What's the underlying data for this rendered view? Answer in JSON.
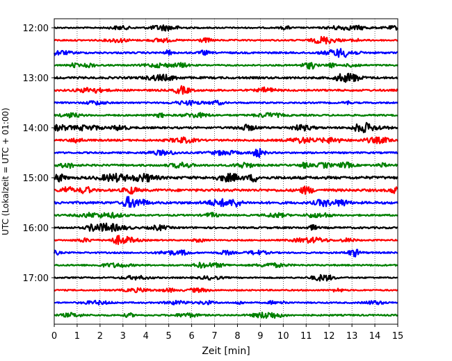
{
  "chart_data": {
    "type": "line",
    "title": "",
    "xlabel": "Zeit  [min]",
    "ylabel": "UTC (Lokalzeit = UTC + 01:00)",
    "xlim": [
      0,
      15
    ],
    "x_ticks": [
      "0",
      "1",
      "2",
      "3",
      "4",
      "5",
      "6",
      "7",
      "8",
      "9",
      "10",
      "11",
      "12",
      "13",
      "14",
      "15"
    ],
    "y_ticks": [
      "12:00",
      "13:00",
      "14:00",
      "15:00",
      "16:00",
      "17:00"
    ],
    "grid": "vertical dotted at each minute",
    "trace_interval_min": 15,
    "trace_colors": [
      "#000000",
      "#ff0000",
      "#0000ff",
      "#008000"
    ],
    "series": [
      {
        "start": "12:00",
        "color": "#000000",
        "amplitude": 0.9
      },
      {
        "start": "12:15",
        "color": "#ff0000",
        "amplitude": 1.0
      },
      {
        "start": "12:30",
        "color": "#0000ff",
        "amplitude": 1.2
      },
      {
        "start": "12:45",
        "color": "#008000",
        "amplitude": 1.0
      },
      {
        "start": "13:00",
        "color": "#000000",
        "amplitude": 1.4
      },
      {
        "start": "13:15",
        "color": "#ff0000",
        "amplitude": 1.3
      },
      {
        "start": "13:30",
        "color": "#0000ff",
        "amplitude": 1.0
      },
      {
        "start": "13:45",
        "color": "#008000",
        "amplitude": 1.1
      },
      {
        "start": "14:00",
        "color": "#000000",
        "amplitude": 1.3
      },
      {
        "start": "14:15",
        "color": "#ff0000",
        "amplitude": 1.3
      },
      {
        "start": "14:30",
        "color": "#0000ff",
        "amplitude": 1.1
      },
      {
        "start": "14:45",
        "color": "#008000",
        "amplitude": 1.3
      },
      {
        "start": "15:00",
        "color": "#000000",
        "amplitude": 1.8
      },
      {
        "start": "15:15",
        "color": "#ff0000",
        "amplitude": 1.7
      },
      {
        "start": "15:30",
        "color": "#0000ff",
        "amplitude": 1.6
      },
      {
        "start": "15:45",
        "color": "#008000",
        "amplitude": 1.1
      },
      {
        "start": "16:00",
        "color": "#000000",
        "amplitude": 1.2
      },
      {
        "start": "16:15",
        "color": "#ff0000",
        "amplitude": 0.9
      },
      {
        "start": "16:30",
        "color": "#0000ff",
        "amplitude": 1.0
      },
      {
        "start": "16:45",
        "color": "#008000",
        "amplitude": 1.0
      },
      {
        "start": "17:00",
        "color": "#000000",
        "amplitude": 0.9
      },
      {
        "start": "17:15",
        "color": "#ff0000",
        "amplitude": 0.9
      },
      {
        "start": "17:30",
        "color": "#0000ff",
        "amplitude": 0.9
      },
      {
        "start": "17:45",
        "color": "#008000",
        "amplitude": 1.0
      }
    ]
  }
}
